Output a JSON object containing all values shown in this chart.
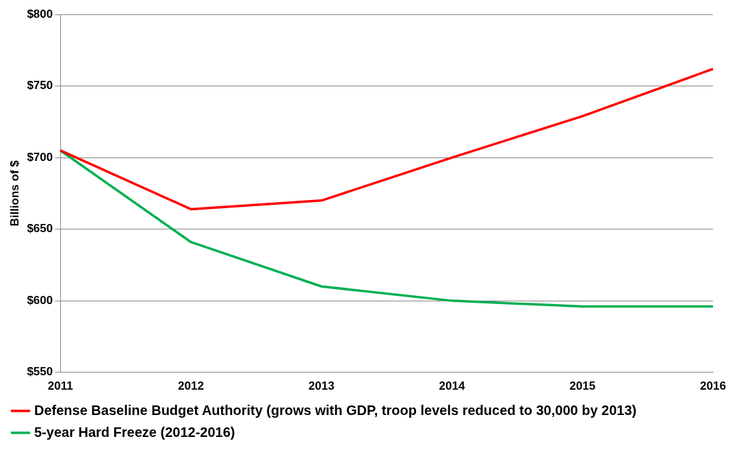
{
  "chart_data": {
    "type": "line",
    "categories": [
      "2011",
      "2012",
      "2013",
      "2014",
      "2015",
      "2016"
    ],
    "series": [
      {
        "name": "Defense Baseline Budget Authority (grows with GDP, troop levels reduced to 30,000 by 2013)",
        "color": "#ff0000",
        "values": [
          705,
          664,
          670,
          700,
          729,
          762
        ]
      },
      {
        "name": "5-year Hard Freeze (2012-2016)",
        "color": "#00b050",
        "values": [
          705,
          641,
          610,
          600,
          596,
          596
        ]
      }
    ],
    "ylabel": "Billions of $",
    "ylim": [
      550,
      800
    ],
    "yticks": [
      {
        "value": 550,
        "label": "$550"
      },
      {
        "value": 600,
        "label": "$600"
      },
      {
        "value": 650,
        "label": "$650"
      },
      {
        "value": 700,
        "label": "$700"
      },
      {
        "value": 750,
        "label": "$750"
      },
      {
        "value": 800,
        "label": "$800"
      }
    ],
    "grid": "y",
    "legend": "bottom",
    "marker": "none",
    "line_style": "solid"
  }
}
